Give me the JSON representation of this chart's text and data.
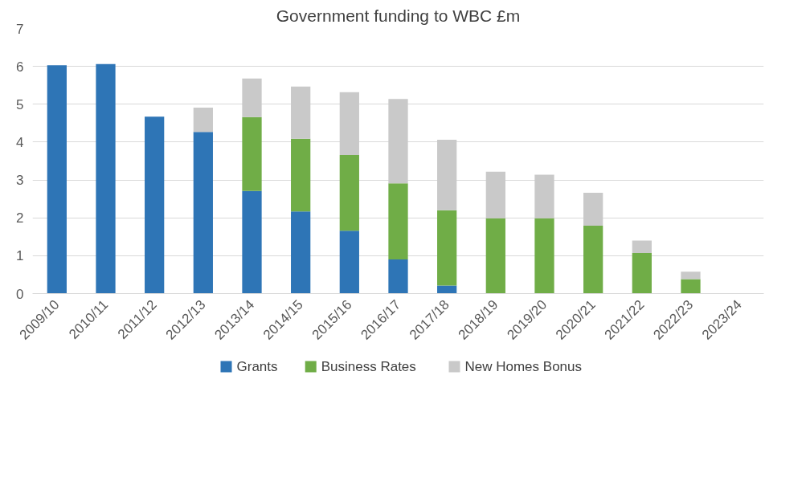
{
  "chart_data": {
    "type": "bar",
    "title": "Government funding to WBC £m",
    "stacked": true,
    "categories": [
      "2009/10",
      "2010/11",
      "2011/12",
      "2012/13",
      "2013/14",
      "2014/15",
      "2015/16",
      "2016/17",
      "2017/18",
      "2018/19",
      "2019/20",
      "2020/21",
      "2021/22",
      "2022/23",
      "2023/24"
    ],
    "series": [
      {
        "name": "Grants",
        "color": "#2e75b6",
        "values": [
          6.03,
          6.06,
          4.67,
          4.27,
          2.71,
          2.17,
          1.66,
          0.9,
          0.21,
          null,
          null,
          null,
          null,
          null,
          null
        ]
      },
      {
        "name": "Business Rates",
        "color": "#70ad47",
        "values": [
          null,
          null,
          null,
          null,
          1.95,
          1.92,
          2.0,
          2.01,
          1.99,
          1.99,
          1.99,
          1.79,
          1.07,
          0.38,
          null
        ]
      },
      {
        "name": "New Homes Bonus",
        "color": "#c9c9c9",
        "values": [
          null,
          null,
          null,
          0.64,
          1.02,
          1.38,
          1.66,
          2.23,
          1.86,
          1.23,
          1.15,
          0.87,
          0.33,
          0.2,
          null
        ]
      }
    ],
    "ylim": [
      0,
      7
    ],
    "yticks": [
      0,
      1,
      2,
      3,
      4,
      5,
      6,
      7
    ],
    "grid": "y",
    "legend": "bottom"
  }
}
